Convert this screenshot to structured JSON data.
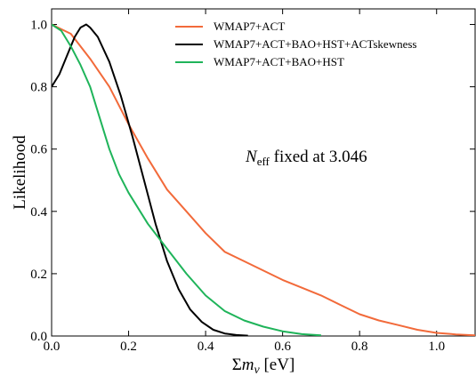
{
  "chart_data": {
    "type": "line",
    "xlabel_prefix": "Σ",
    "xlabel_var": "m",
    "xlabel_sub": "ν",
    "xlabel_unit": "[eV]",
    "ylabel": "Likelihood",
    "xlim": [
      0.0,
      1.1
    ],
    "ylim": [
      0.0,
      1.05
    ],
    "xticks": [
      0.0,
      0.2,
      0.4,
      0.6,
      0.8,
      1.0
    ],
    "xtick_labels": [
      "0.0",
      "0.2",
      "0.4",
      "0.6",
      "0.8",
      "1.0"
    ],
    "yticks": [
      0.0,
      0.2,
      0.4,
      0.6,
      0.8,
      1.0
    ],
    "ytick_labels": [
      "0.0",
      "0.2",
      "0.4",
      "0.6",
      "0.8",
      "1.0"
    ],
    "grid": false,
    "legend_position": "top-right",
    "annotation": {
      "var": "N",
      "sub": "eff",
      "rest": " fixed at 3.046"
    },
    "series": [
      {
        "name": "WMAP7+ACT",
        "color": "#f26a3a",
        "x": [
          0.0,
          0.05,
          0.1,
          0.15,
          0.2,
          0.25,
          0.3,
          0.35,
          0.4,
          0.45,
          0.5,
          0.55,
          0.6,
          0.65,
          0.7,
          0.75,
          0.8,
          0.85,
          0.9,
          0.95,
          1.0,
          1.05,
          1.1
        ],
        "y": [
          1.0,
          0.97,
          0.89,
          0.8,
          0.68,
          0.57,
          0.47,
          0.4,
          0.33,
          0.27,
          0.24,
          0.21,
          0.18,
          0.155,
          0.13,
          0.1,
          0.07,
          0.05,
          0.035,
          0.02,
          0.01,
          0.005,
          0.002
        ]
      },
      {
        "name": "WMAP7+ACT+BAO+HST+ACTskewness",
        "color": "#000000",
        "x": [
          0.0,
          0.02,
          0.04,
          0.06,
          0.075,
          0.09,
          0.1,
          0.12,
          0.15,
          0.18,
          0.21,
          0.24,
          0.27,
          0.3,
          0.33,
          0.36,
          0.39,
          0.42,
          0.45,
          0.48,
          0.51
        ],
        "y": [
          0.8,
          0.84,
          0.9,
          0.96,
          0.99,
          1.0,
          0.99,
          0.96,
          0.88,
          0.77,
          0.64,
          0.5,
          0.36,
          0.24,
          0.15,
          0.085,
          0.045,
          0.02,
          0.008,
          0.003,
          0.001
        ]
      },
      {
        "name": "WMAP7+ACT+BAO+HST",
        "color": "#1fb45a",
        "x": [
          0.0,
          0.025,
          0.05,
          0.075,
          0.1,
          0.125,
          0.15,
          0.175,
          0.2,
          0.25,
          0.3,
          0.35,
          0.4,
          0.45,
          0.5,
          0.55,
          0.6,
          0.65,
          0.7
        ],
        "y": [
          1.0,
          0.98,
          0.93,
          0.87,
          0.8,
          0.7,
          0.6,
          0.52,
          0.46,
          0.36,
          0.28,
          0.2,
          0.13,
          0.08,
          0.05,
          0.03,
          0.015,
          0.006,
          0.002
        ]
      }
    ]
  }
}
